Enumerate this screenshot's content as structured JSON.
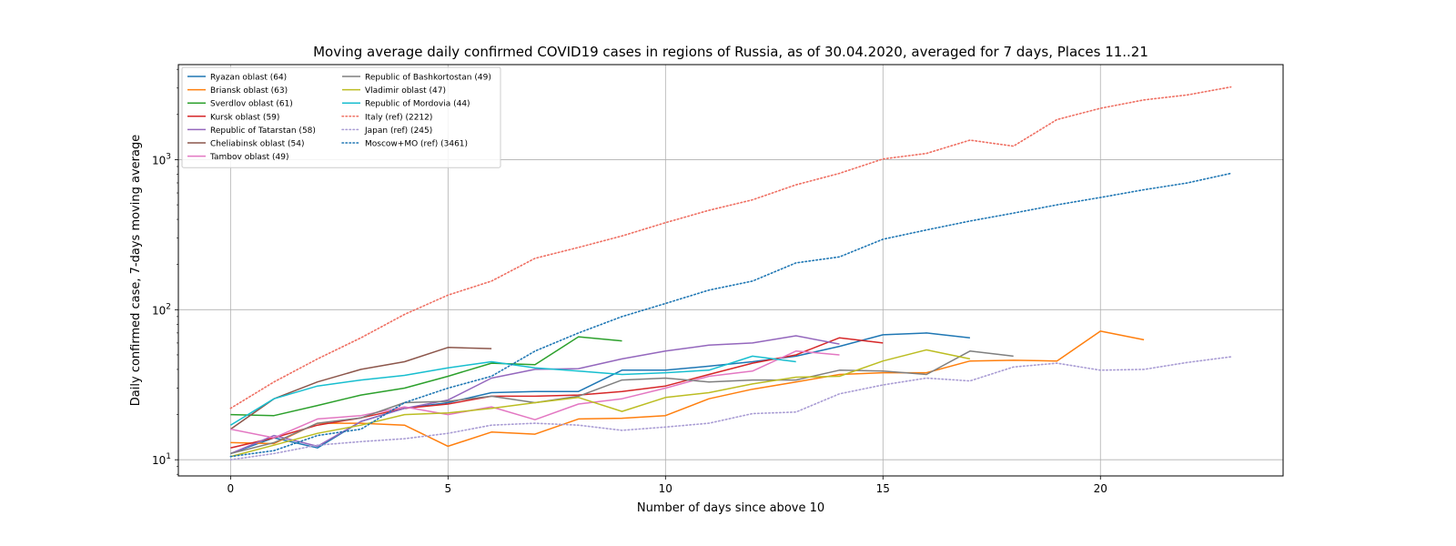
{
  "chart_data": {
    "type": "line",
    "title": "Moving average daily confirmed COVID19 cases in regions of Russia, as of 30.04.2020, averaged for 7 days, Places 11..21",
    "xlabel": "Number of days since above 10",
    "ylabel": "Daily confirmed case, 7-days moving average",
    "xlim": [
      -1.2,
      24.2
    ],
    "ylim": [
      7.8,
      4300
    ],
    "yscale": "log",
    "grid": true,
    "legend_position": "top-left",
    "x_ticks": [
      0,
      5,
      10,
      15,
      20
    ],
    "x_tick_labels": [
      "0",
      "5",
      "10",
      "15",
      "20"
    ],
    "y_ticks": [
      10,
      100,
      1000
    ],
    "y_tick_bases": [
      "10",
      "10",
      "10"
    ],
    "y_tick_exponents": [
      "1",
      "2",
      "3"
    ],
    "series": [
      {
        "name": "Ryazan oblast (64)",
        "color": "#1f77b4",
        "style": "solid",
        "x": [
          0,
          1,
          2,
          3,
          4,
          5,
          6,
          7,
          8,
          9,
          10,
          11,
          12,
          13,
          14,
          15,
          16,
          17
        ],
        "y": [
          11,
          14,
          12,
          18,
          22,
          24,
          28,
          28.5,
          28.5,
          39.5,
          39.5,
          42,
          45,
          49,
          57,
          68,
          70,
          65
        ]
      },
      {
        "name": "Briansk oblast (63)",
        "color": "#ff7f0e",
        "style": "solid",
        "x": [
          0,
          1,
          2,
          3,
          4,
          5,
          6,
          7,
          8,
          9,
          10,
          11,
          12,
          13,
          14,
          15,
          16,
          17,
          18,
          19,
          20,
          21
        ],
        "y": [
          13,
          12.8,
          17.5,
          17.5,
          17,
          12.3,
          15.3,
          14.8,
          18.7,
          18.9,
          19.7,
          25.5,
          29.5,
          33,
          37,
          38,
          38,
          45.5,
          46,
          45.5,
          72,
          63
        ]
      },
      {
        "name": "Sverdlov oblast (61)",
        "color": "#2ca02c",
        "style": "solid",
        "x": [
          0,
          1,
          2,
          3,
          4,
          5,
          6,
          7,
          8,
          9
        ],
        "y": [
          20,
          19.7,
          23,
          27,
          30,
          36,
          44,
          43,
          66,
          62
        ]
      },
      {
        "name": "Kursk oblast (59)",
        "color": "#d62728",
        "style": "solid",
        "x": [
          0,
          1,
          2,
          3,
          4,
          5,
          6,
          7,
          8,
          9,
          10,
          11,
          12,
          13,
          14,
          15
        ],
        "y": [
          12,
          14,
          17,
          19,
          22,
          23.5,
          26.5,
          26.5,
          27,
          28.5,
          31,
          37,
          44,
          50,
          65,
          60
        ]
      },
      {
        "name": "Republic of Tatarstan (58)",
        "color": "#9467bd",
        "style": "solid",
        "x": [
          0,
          1,
          2,
          3,
          4,
          5,
          6,
          7,
          8,
          9,
          10,
          11,
          12,
          13,
          14
        ],
        "y": [
          11,
          14.5,
          12.3,
          18,
          22,
          25,
          35,
          40,
          40.5,
          47,
          53,
          58,
          60,
          67,
          59
        ]
      },
      {
        "name": "Cheliabinsk oblast (54)",
        "color": "#8c564b",
        "style": "solid",
        "x": [
          0,
          1,
          2,
          3,
          4,
          5,
          6
        ],
        "y": [
          16,
          25.5,
          33,
          40,
          45,
          56,
          55
        ]
      },
      {
        "name": "Tambov oblast (49)",
        "color": "#e377c2",
        "style": "solid",
        "x": [
          0,
          1,
          2,
          3,
          4,
          5,
          6,
          7,
          8,
          9,
          10,
          11,
          12,
          13,
          14
        ],
        "y": [
          16,
          14,
          18.7,
          19.7,
          22.5,
          20,
          22.5,
          18.5,
          23.5,
          25.5,
          30,
          36,
          39,
          53,
          50
        ]
      },
      {
        "name": "Republic of Bashkortostan (49)",
        "color": "#7f7f7f",
        "style": "solid",
        "x": [
          0,
          1,
          2,
          3,
          4,
          5,
          6,
          7,
          8,
          9,
          10,
          11,
          12,
          13,
          14,
          15,
          16,
          17,
          18
        ],
        "y": [
          11,
          13,
          17.5,
          19,
          24,
          24.5,
          26.5,
          24,
          26.5,
          34,
          35,
          33,
          34,
          34,
          39.5,
          39,
          37,
          53,
          49
        ]
      },
      {
        "name": "Vladimir oblast (47)",
        "color": "#bcbd22",
        "style": "solid",
        "x": [
          0,
          1,
          2,
          3,
          4,
          5,
          6,
          7,
          8,
          9,
          10,
          11,
          12,
          13,
          14,
          15,
          16,
          17
        ],
        "y": [
          10.5,
          12.5,
          15,
          17,
          20,
          20.5,
          22,
          24,
          26,
          21,
          26,
          28,
          32,
          35.5,
          36,
          45.5,
          54,
          47
        ]
      },
      {
        "name": "Republic of Mordovia (44)",
        "color": "#17becf",
        "style": "solid",
        "x": [
          0,
          1,
          2,
          3,
          4,
          5,
          6,
          7,
          8,
          9,
          10,
          11,
          12,
          13
        ],
        "y": [
          17,
          25.5,
          31,
          34,
          36.5,
          41,
          45,
          41,
          39,
          37,
          38,
          39.5,
          49,
          45
        ]
      },
      {
        "name": "Italy (ref) (2212)",
        "color": "#ef6f62",
        "style": "dotted",
        "x": [
          0,
          1,
          2,
          3,
          4,
          5,
          6,
          7,
          8,
          9,
          10,
          11,
          12,
          13,
          14,
          15,
          16,
          17,
          18,
          19,
          20,
          21,
          22,
          23
        ],
        "y": [
          22,
          33,
          47,
          65,
          93,
          125,
          155,
          220,
          260,
          310,
          380,
          460,
          540,
          680,
          810,
          1010,
          1100,
          1350,
          1230,
          1850,
          2200,
          2500,
          2700,
          3050
        ]
      },
      {
        "name": "Japan (ref) (245)",
        "color": "#a99cd4",
        "style": "dotted",
        "x": [
          0,
          1,
          2,
          3,
          4,
          5,
          6,
          7,
          8,
          9,
          10,
          11,
          12,
          13,
          14,
          15,
          16,
          17,
          18,
          19,
          20,
          21,
          22,
          23
        ],
        "y": [
          10,
          11,
          12.5,
          13.2,
          13.8,
          15,
          17,
          17.5,
          17,
          15.7,
          16.5,
          17.5,
          20.3,
          20.8,
          27.5,
          31.5,
          35,
          33.5,
          41.5,
          44,
          39.5,
          40,
          44.5,
          48.5
        ]
      },
      {
        "name": "Moscow+MO (ref) (3461)",
        "color": "#1f77b4",
        "style": "dotted",
        "x": [
          0,
          1,
          2,
          3,
          4,
          5,
          6,
          7,
          8,
          9,
          10,
          11,
          12,
          13,
          14,
          15,
          16,
          17,
          18,
          19,
          20,
          21,
          22,
          23
        ],
        "y": [
          10.5,
          11.5,
          14.5,
          16,
          24,
          30,
          36,
          53,
          70,
          90,
          110,
          135,
          155,
          205,
          225,
          295,
          340,
          390,
          440,
          500,
          560,
          630,
          700,
          810
        ]
      }
    ]
  }
}
